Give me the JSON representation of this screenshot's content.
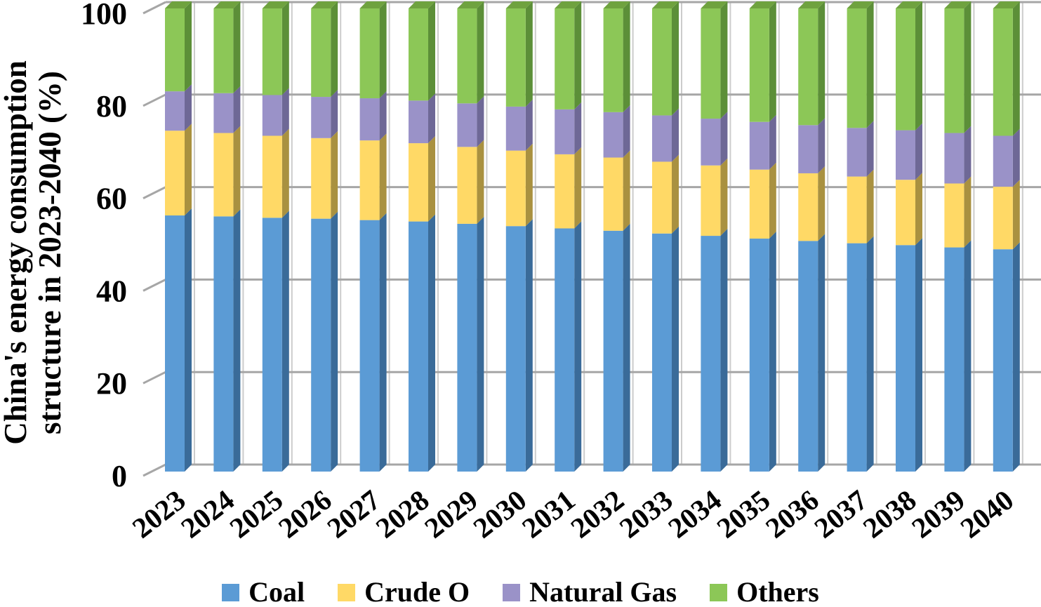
{
  "y_axis": {
    "title_line1": "China's energy consumption",
    "title_line2": "structure in 2023-2040 (%)",
    "ticks": [
      "0",
      "20",
      "40",
      "60",
      "80",
      "100"
    ]
  },
  "colors": {
    "background": "#FFFFFF",
    "gridline": "#A6A6A6",
    "back_wall_vline": "#CCCCCC",
    "text": "#000000"
  },
  "chart_data": {
    "type": "bar",
    "stacked": true,
    "grid": true,
    "legend_position": "bottom",
    "title": "",
    "xlabel": "",
    "ylabel": "China's energy consumption structure in 2023-2040 (%)",
    "ylim": [
      0,
      100
    ],
    "y_tick_step": 20,
    "categories": [
      "2023",
      "2024",
      "2025",
      "2026",
      "2027",
      "2028",
      "2029",
      "2030",
      "2031",
      "2032",
      "2033",
      "2034",
      "2035",
      "2036",
      "2037",
      "2038",
      "2039",
      "2040"
    ],
    "series": [
      {
        "name": "Coal",
        "color": "#5B9BD5",
        "side_color": "#3A6B99",
        "top_color": "#4A86C0",
        "values": [
          55.3,
          55.1,
          54.8,
          54.6,
          54.3,
          54.0,
          53.5,
          53.0,
          52.5,
          52.0,
          51.4,
          50.9,
          50.3,
          49.8,
          49.3,
          48.9,
          48.4,
          48.0
        ]
      },
      {
        "name": "Crude O",
        "color": "#FFD966",
        "side_color": "#A99140",
        "top_color": "#D4B455",
        "values": [
          18.3,
          18.0,
          17.7,
          17.4,
          17.2,
          16.9,
          16.6,
          16.3,
          16.0,
          15.8,
          15.5,
          15.2,
          14.9,
          14.6,
          14.4,
          14.1,
          13.8,
          13.5
        ]
      },
      {
        "name": "Natural Gas",
        "color": "#9A92C8",
        "side_color": "#6E6896",
        "top_color": "#867DAF",
        "values": [
          8.5,
          8.6,
          8.8,
          8.9,
          9.1,
          9.2,
          9.4,
          9.5,
          9.7,
          9.8,
          10.0,
          10.1,
          10.3,
          10.4,
          10.5,
          10.7,
          10.9,
          11.0
        ]
      },
      {
        "name": "Others",
        "color": "#8CC757",
        "side_color": "#5C8F38",
        "top_color": "#6FA23F",
        "values": [
          17.9,
          18.3,
          18.7,
          19.1,
          19.4,
          19.9,
          20.5,
          21.2,
          21.8,
          22.4,
          23.1,
          23.8,
          24.5,
          25.2,
          25.8,
          26.3,
          26.9,
          27.5
        ]
      }
    ]
  }
}
